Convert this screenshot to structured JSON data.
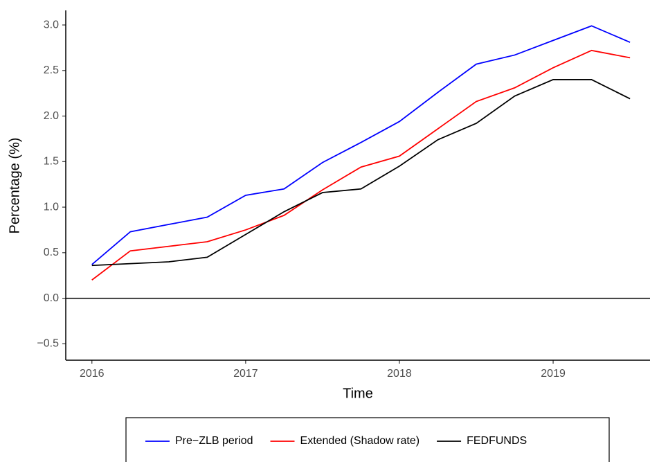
{
  "chart_data": {
    "type": "line",
    "x_label": "Time",
    "y_label": "Percentage (%)",
    "x": [
      2016,
      2016.25,
      2016.5,
      2016.75,
      2017,
      2017.25,
      2017.5,
      2017.75,
      2018,
      2018.25,
      2018.5,
      2018.75,
      2019,
      2019.25,
      2019.5
    ],
    "series": [
      {
        "name": "Pre−ZLB period",
        "color": "#0000ff",
        "values": [
          0.37,
          0.73,
          0.81,
          0.89,
          1.13,
          1.2,
          1.49,
          1.71,
          1.94,
          2.26,
          2.57,
          2.67,
          2.83,
          2.99,
          2.81
        ]
      },
      {
        "name": "Extended (Shadow rate)",
        "color": "#ff0000",
        "values": [
          0.2,
          0.52,
          0.57,
          0.62,
          0.75,
          0.91,
          1.19,
          1.44,
          1.56,
          1.86,
          2.16,
          2.31,
          2.53,
          2.72,
          2.64
        ]
      },
      {
        "name": "FEDFUNDS",
        "color": "#000000",
        "values": [
          0.36,
          0.38,
          0.4,
          0.45,
          0.7,
          0.95,
          1.16,
          1.2,
          1.45,
          1.74,
          1.92,
          2.22,
          2.4,
          2.4,
          2.19
        ]
      }
    ],
    "xlim": [
      2015.83,
      2019.63
    ],
    "xticks": [
      2016,
      2017,
      2018,
      2019
    ],
    "ylim": [
      -0.68,
      3.16
    ],
    "yticks": [
      {
        "value": -0.5,
        "label": "−0.5"
      },
      {
        "value": 0,
        "label": "0.0"
      },
      0.5,
      {
        "value": 1,
        "label": "1.0"
      },
      1.5,
      {
        "value": 2,
        "label": "2.0"
      },
      2.5,
      {
        "value": 3,
        "label": "3.0"
      }
    ],
    "hline": 0,
    "grid": false,
    "legend": "bottom"
  }
}
